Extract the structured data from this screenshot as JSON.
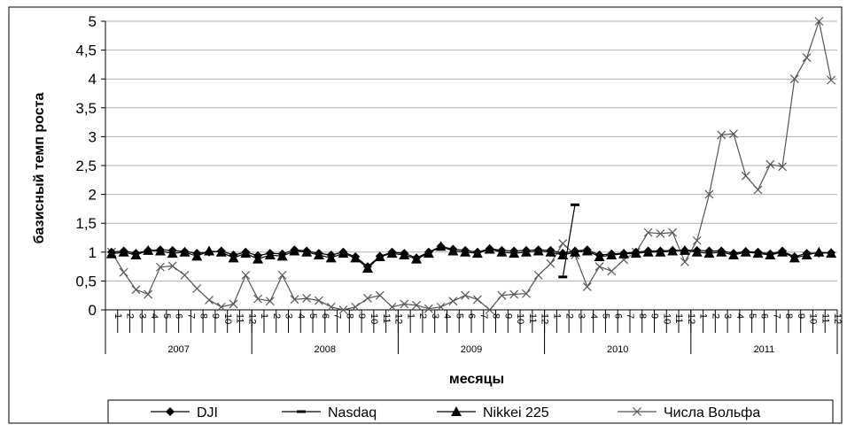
{
  "chart_data": {
    "type": "line",
    "title": "",
    "xlabel": "месяцы",
    "ylabel": "базисный темп роста",
    "ylim": [
      0,
      5
    ],
    "yticks": [
      "0",
      "0,5",
      "1",
      "1,5",
      "2",
      "2,5",
      "3",
      "3,5",
      "4",
      "4,5",
      "5"
    ],
    "ytick_values": [
      0,
      0.5,
      1,
      1.5,
      2,
      2.5,
      3,
      3.5,
      4,
      4.5,
      5
    ],
    "years": [
      "2007",
      "2008",
      "2009",
      "2010",
      "2011"
    ],
    "months": [
      "1",
      "2",
      "3",
      "4",
      "5",
      "6",
      "7",
      "8",
      "9",
      "10",
      "11",
      "12"
    ],
    "grid": "horizontal",
    "legend_position": "bottom",
    "colors": {
      "dji": "#000000",
      "nasdaq": "#000000",
      "nikkei": "#000000",
      "wolf": "#555555",
      "grid": "#b0b0b0"
    },
    "series": [
      {
        "name": "DJI",
        "marker": "diamond",
        "values": [
          1.0,
          1.02,
          0.98,
          1.03,
          1.04,
          1.03,
          1.01,
          0.98,
          1.0,
          1.02,
          0.95,
          1.0,
          0.94,
          0.98,
          0.97,
          1.04,
          1.02,
          0.98,
          0.95,
          1.0,
          0.92,
          0.75,
          0.93,
          1.0,
          0.98,
          0.9,
          1.0,
          1.1,
          1.05,
          1.03,
          1.0,
          1.06,
          1.03,
          1.02,
          1.03,
          1.04,
          1.03,
          0.98,
          1.02,
          1.04,
          0.95,
          0.97,
          0.98,
          1.0,
          1.02,
          1.02,
          1.03,
          1.03,
          1.03,
          1.02,
          1.02,
          0.98,
          1.01,
          1.0,
          0.97,
          1.02,
          0.92,
          0.98,
          0.98,
          0.99
        ]
      },
      {
        "name": "Nasdaq",
        "marker": "dash",
        "values": [
          null,
          null,
          null,
          null,
          null,
          null,
          null,
          null,
          null,
          null,
          null,
          null,
          null,
          null,
          null,
          null,
          null,
          null,
          null,
          null,
          null,
          null,
          null,
          null,
          null,
          null,
          null,
          null,
          null,
          null,
          null,
          null,
          null,
          null,
          null,
          null,
          null,
          0.57,
          1.82,
          null,
          null,
          null,
          null,
          null,
          null,
          null,
          null,
          null,
          null,
          null,
          null,
          null,
          null,
          null,
          null,
          null,
          null,
          null,
          null,
          null
        ]
      },
      {
        "name": "Nikkei 225",
        "marker": "triangle",
        "values": [
          0.97,
          1.0,
          0.95,
          1.03,
          1.02,
          0.98,
          1.0,
          0.93,
          1.02,
          1.0,
          0.9,
          0.98,
          0.88,
          0.95,
          0.93,
          1.02,
          1.0,
          0.95,
          0.9,
          0.98,
          0.9,
          0.72,
          0.92,
          0.98,
          0.95,
          0.88,
          0.98,
          1.1,
          1.02,
          1.0,
          0.98,
          1.05,
          1.0,
          0.98,
          1.0,
          1.02,
          1.0,
          0.95,
          1.0,
          1.02,
          0.92,
          0.95,
          0.97,
          0.98,
          1.0,
          1.0,
          1.02,
          1.03,
          1.0,
          0.98,
          1.0,
          0.95,
          1.0,
          0.98,
          0.95,
          1.0,
          0.9,
          0.95,
          1.0,
          0.98
        ]
      },
      {
        "name": "Числа Вольфа",
        "marker": "x",
        "values": [
          1.0,
          0.65,
          0.35,
          0.27,
          0.74,
          0.76,
          0.6,
          0.37,
          0.17,
          0.05,
          0.1,
          0.6,
          0.19,
          0.15,
          0.6,
          0.18,
          0.2,
          0.16,
          0.05,
          0.0,
          0.05,
          0.2,
          0.25,
          0.05,
          0.1,
          0.08,
          0.02,
          0.05,
          0.15,
          0.25,
          0.18,
          0.0,
          0.25,
          0.27,
          0.28,
          0.6,
          0.8,
          1.15,
          0.95,
          0.4,
          0.75,
          0.67,
          0.87,
          1.0,
          1.34,
          1.32,
          1.34,
          0.83,
          1.2,
          2.0,
          3.03,
          3.05,
          2.32,
          2.08,
          2.52,
          2.48,
          4.0,
          4.37,
          5.0,
          3.98
        ]
      }
    ]
  }
}
